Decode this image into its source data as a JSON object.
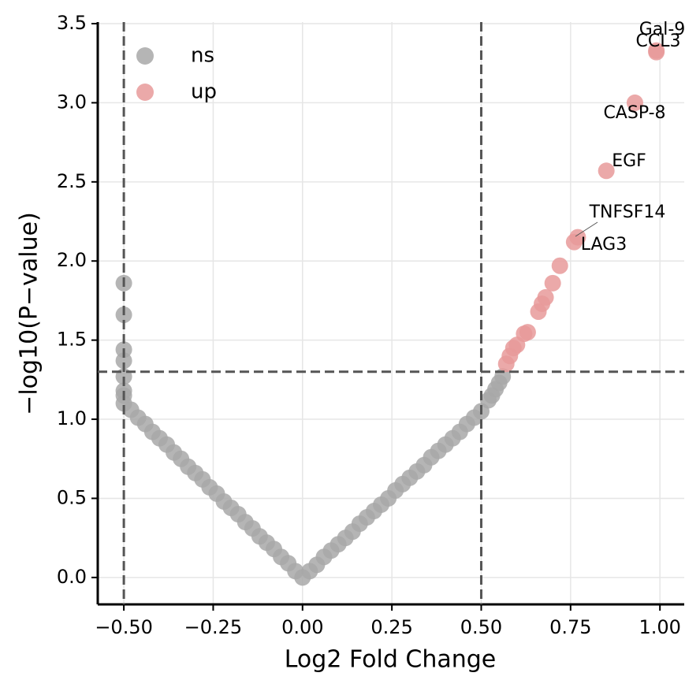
{
  "chart_data": {
    "type": "scatter",
    "xlabel": "Log2 Fold Change",
    "ylabel": "−log10(P−value)",
    "xlim": [
      -0.573,
      1.068
    ],
    "ylim": [
      -0.17,
      3.51
    ],
    "xticks": [
      {
        "value": -0.5,
        "label": "−0.50"
      },
      {
        "value": -0.25,
        "label": "−0.25"
      },
      {
        "value": 0,
        "label": "0.00"
      },
      {
        "value": 0.25,
        "label": "0.25"
      },
      {
        "value": 0.5,
        "label": "0.50"
      },
      {
        "value": 0.75,
        "label": "0.75"
      },
      {
        "value": 1,
        "label": "1.00"
      }
    ],
    "yticks": [
      {
        "value": 0,
        "label": "0.0"
      },
      {
        "value": 0.5,
        "label": "0.5"
      },
      {
        "value": 1,
        "label": "1.0"
      },
      {
        "value": 1.5,
        "label": "1.5"
      },
      {
        "value": 2,
        "label": "2.0"
      },
      {
        "value": 2.5,
        "label": "2.5"
      },
      {
        "value": 3,
        "label": "3.0"
      },
      {
        "value": 3.5,
        "label": "3.5"
      }
    ],
    "grid": true,
    "legend": "upper left",
    "vlines": [
      -0.5,
      0.5
    ],
    "hline": 1.3,
    "series": [
      {
        "name": "ns",
        "color": "#a8a8a8",
        "x": [
          -0.5,
          -0.48,
          -0.46,
          -0.44,
          -0.42,
          -0.4,
          -0.38,
          -0.36,
          -0.34,
          -0.32,
          -0.3,
          -0.28,
          -0.26,
          -0.24,
          -0.22,
          -0.2,
          -0.18,
          -0.16,
          -0.14,
          -0.12,
          -0.1,
          -0.08,
          -0.06,
          -0.04,
          -0.02,
          0,
          0.02,
          0.04,
          0.06,
          0.08,
          0.1,
          0.12,
          0.14,
          0.16,
          0.18,
          0.2,
          0.22,
          0.24,
          0.26,
          0.28,
          0.3,
          0.32,
          0.34,
          0.36,
          0.38,
          0.4,
          0.42,
          0.44,
          0.46,
          0.48,
          0.5,
          0.52,
          0.53,
          0.54,
          0.55,
          0.56,
          -0.5,
          -0.5,
          -0.5,
          -0.5,
          -0.5,
          -0.5,
          -0.5
        ],
        "values": [
          1.1,
          1.06,
          1.01,
          0.97,
          0.92,
          0.88,
          0.84,
          0.79,
          0.75,
          0.7,
          0.66,
          0.62,
          0.57,
          0.53,
          0.48,
          0.44,
          0.4,
          0.35,
          0.31,
          0.26,
          0.22,
          0.18,
          0.13,
          0.09,
          0.04,
          0,
          0.04,
          0.08,
          0.13,
          0.17,
          0.21,
          0.25,
          0.29,
          0.34,
          0.38,
          0.42,
          0.46,
          0.5,
          0.55,
          0.59,
          0.63,
          0.67,
          0.71,
          0.76,
          0.8,
          0.84,
          0.88,
          0.92,
          0.97,
          1.01,
          1.05,
          1.12,
          1.15,
          1.19,
          1.23,
          1.27,
          1.15,
          1.18,
          1.27,
          1.37,
          1.44,
          1.66,
          1.86
        ]
      },
      {
        "name": "up",
        "color": "#e89a9a",
        "x": [
          0.57,
          0.58,
          0.59,
          0.6,
          0.62,
          0.63,
          0.66,
          0.67,
          0.68,
          0.7,
          0.72,
          0.76,
          0.77,
          0.85,
          0.93,
          0.99,
          0.99
        ],
        "values": [
          1.35,
          1.4,
          1.45,
          1.47,
          1.54,
          1.55,
          1.68,
          1.73,
          1.77,
          1.86,
          1.97,
          2.12,
          2.15,
          2.57,
          3.0,
          3.32,
          3.33
        ]
      }
    ],
    "annotations": [
      "Gal-9",
      "CCL3",
      "CASP-8",
      "EGF",
      "TNFSF14",
      "LAG3"
    ]
  }
}
